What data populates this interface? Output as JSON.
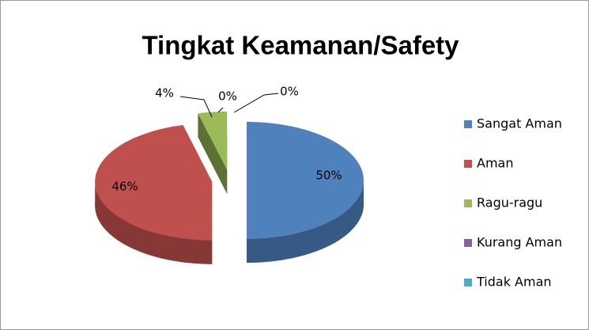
{
  "chart_data": {
    "type": "pie",
    "title": "Tingkat Keamanan/Safety",
    "categories": [
      "Sangat Aman",
      "Aman",
      "Ragu-ragu",
      "Kurang Aman",
      "Tidak Aman"
    ],
    "values": [
      50,
      46,
      4,
      0,
      0
    ],
    "value_labels": [
      "50%",
      "46%",
      "4%",
      "0%",
      "0%"
    ],
    "colors": [
      "#4f81bd",
      "#c0504d",
      "#9bbb59",
      "#8064a2",
      "#4bacc6"
    ],
    "legend": "right"
  }
}
